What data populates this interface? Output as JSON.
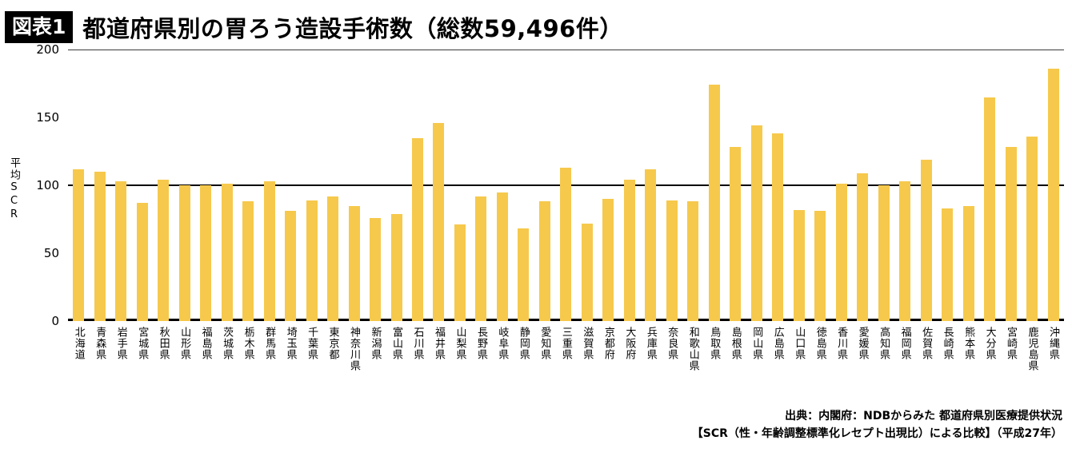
{
  "header": {
    "badge": "図表1",
    "title": "都道府県別の胃ろう造設手術数（総数59,496件）"
  },
  "footer": {
    "line1": "出典：内閣府：NDBからみた 都道府県別医療提供状況",
    "line2": "【SCR（性・年齢調整標準化レセプト出現比）による比較】（平成27年）"
  },
  "chart_data": {
    "type": "bar",
    "title": "都道府県別の胃ろう造設手術数（総数59,496件）",
    "ylabel": "平均SCR",
    "ylim": [
      0,
      200
    ],
    "yticks": [
      0,
      50,
      100,
      150,
      200
    ],
    "reference_line": 100,
    "grid": "top line at 200, bold reference line at 100, axis line at 0",
    "legend": "none",
    "bar_color": "#f6c94c",
    "categories": [
      "北海道",
      "青森県",
      "岩手県",
      "宮城県",
      "秋田県",
      "山形県",
      "福島県",
      "茨城県",
      "栃木県",
      "群馬県",
      "埼玉県",
      "千葉県",
      "東京都",
      "神奈川県",
      "新潟県",
      "富山県",
      "石川県",
      "福井県",
      "山梨県",
      "長野県",
      "岐阜県",
      "静岡県",
      "愛知県",
      "三重県",
      "滋賀県",
      "京都府",
      "大阪府",
      "兵庫県",
      "奈良県",
      "和歌山県",
      "鳥取県",
      "島根県",
      "岡山県",
      "広島県",
      "山口県",
      "徳島県",
      "香川県",
      "愛媛県",
      "高知県",
      "福岡県",
      "佐賀県",
      "長崎県",
      "熊本県",
      "大分県",
      "宮崎県",
      "鹿児島県",
      "沖縄県"
    ],
    "values": [
      112,
      110,
      103,
      87,
      104,
      100,
      100,
      101,
      88,
      103,
      81,
      89,
      92,
      85,
      76,
      79,
      135,
      146,
      71,
      92,
      95,
      68,
      88,
      113,
      72,
      90,
      104,
      112,
      89,
      88,
      174,
      128,
      144,
      138,
      82,
      81,
      101,
      109,
      100,
      103,
      119,
      83,
      85,
      165,
      128,
      136,
      186
    ]
  }
}
